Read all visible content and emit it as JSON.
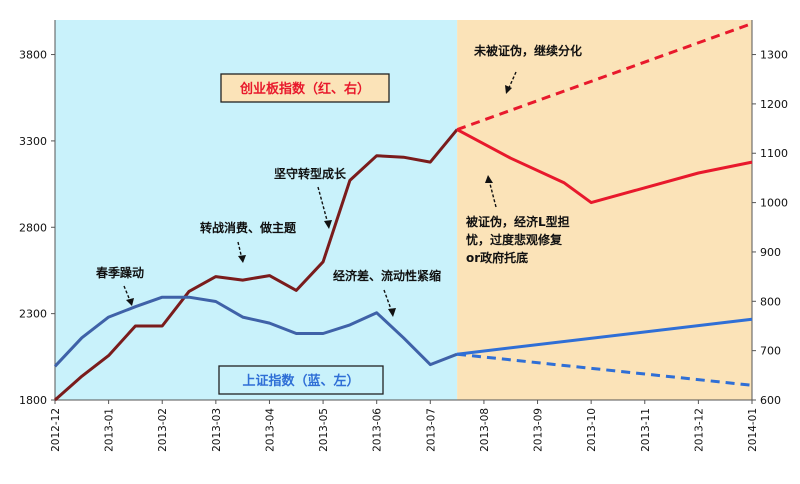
{
  "chart_data": {
    "type": "line",
    "x": [
      "2012-12",
      "2013-01",
      "2013-02",
      "2013-03",
      "2013-04",
      "2013-05",
      "2013-06",
      "2013-07",
      "2013-08",
      "2013-09",
      "2013-10",
      "2013-11",
      "2013-12",
      "2014-01"
    ],
    "left_axis": {
      "ticks": [
        1800,
        2300,
        2800,
        3300,
        3800
      ],
      "range": [
        1800,
        4000
      ]
    },
    "right_axis": {
      "ticks": [
        600,
        700,
        800,
        900,
        1000,
        1100,
        1200,
        1300
      ],
      "range": [
        600,
        1370
      ]
    },
    "colors": {
      "chinext": "#7a1c1c",
      "chinext_forecast": "#e8192c",
      "shanghai": "#3f62a8",
      "shanghai_forecast": "#2f6fd6",
      "history_bg": "#c9f2fb",
      "forecast_bg": "#fbe3b8"
    },
    "series": [
      {
        "name": "创业板指数（红、右）",
        "axis": "right",
        "values": [
          {
            "x": 0.0,
            "y": 600
          },
          {
            "x": 0.5,
            "y": 648
          },
          {
            "x": 1.0,
            "y": 690
          },
          {
            "x": 1.5,
            "y": 750
          },
          {
            "x": 2.0,
            "y": 750
          },
          {
            "x": 2.5,
            "y": 820
          },
          {
            "x": 3.0,
            "y": 850
          },
          {
            "x": 3.5,
            "y": 843
          },
          {
            "x": 4.0,
            "y": 852
          },
          {
            "x": 4.5,
            "y": 822
          },
          {
            "x": 5.0,
            "y": 880
          },
          {
            "x": 5.5,
            "y": 1045
          },
          {
            "x": 6.0,
            "y": 1095
          },
          {
            "x": 6.5,
            "y": 1092
          },
          {
            "x": 7.0,
            "y": 1082
          },
          {
            "x": 7.5,
            "y": 1148
          }
        ]
      },
      {
        "name": "上证指数（蓝、左）",
        "axis": "left",
        "values": [
          {
            "x": 0.0,
            "y": 1995
          },
          {
            "x": 0.5,
            "y": 2160
          },
          {
            "x": 1.0,
            "y": 2280
          },
          {
            "x": 1.5,
            "y": 2340
          },
          {
            "x": 2.0,
            "y": 2395
          },
          {
            "x": 2.5,
            "y": 2395
          },
          {
            "x": 3.0,
            "y": 2370
          },
          {
            "x": 3.5,
            "y": 2280
          },
          {
            "x": 4.0,
            "y": 2245
          },
          {
            "x": 4.5,
            "y": 2185
          },
          {
            "x": 5.0,
            "y": 2185
          },
          {
            "x": 5.5,
            "y": 2235
          },
          {
            "x": 6.0,
            "y": 2305
          },
          {
            "x": 6.5,
            "y": 2160
          },
          {
            "x": 7.0,
            "y": 2005
          },
          {
            "x": 7.5,
            "y": 2065
          }
        ]
      }
    ],
    "forecasts": [
      {
        "axis": "right",
        "style": "dashed",
        "color_key": "chinext_forecast",
        "values": [
          {
            "x": 7.5,
            "y": 1148
          },
          {
            "x": 13.0,
            "y": 1363
          }
        ]
      },
      {
        "axis": "right",
        "style": "solid",
        "color_key": "chinext_forecast",
        "values": [
          {
            "x": 7.5,
            "y": 1148
          },
          {
            "x": 8.5,
            "y": 1090
          },
          {
            "x": 9.5,
            "y": 1040
          },
          {
            "x": 10.0,
            "y": 1000
          },
          {
            "x": 11.0,
            "y": 1030
          },
          {
            "x": 12.0,
            "y": 1060
          },
          {
            "x": 13.0,
            "y": 1082
          }
        ]
      },
      {
        "axis": "left",
        "style": "solid",
        "color_key": "shanghai_forecast",
        "values": [
          {
            "x": 7.5,
            "y": 2065
          },
          {
            "x": 13.0,
            "y": 2268
          }
        ]
      },
      {
        "axis": "left",
        "style": "dashed",
        "color_key": "shanghai_forecast",
        "values": [
          {
            "x": 7.5,
            "y": 2065
          },
          {
            "x": 13.0,
            "y": 1885
          }
        ]
      }
    ],
    "forecast_start_x": 7.5,
    "legend_boxes": {
      "chinext": "创业板指数（红、右）",
      "shanghai": "上证指数（蓝、左）"
    },
    "annotations": {
      "spring": "春季躁动",
      "consumer": "转战消费、做主题",
      "growth": "坚守转型成长",
      "economy": "经济差、流动性紧缩",
      "unconfirmed": "未被证伪，继续分化",
      "confirmed_l1": "被证伪，经济L型担",
      "confirmed_l2": "忧，过度悲观修复",
      "confirmed_l3": "or政府托底"
    }
  }
}
